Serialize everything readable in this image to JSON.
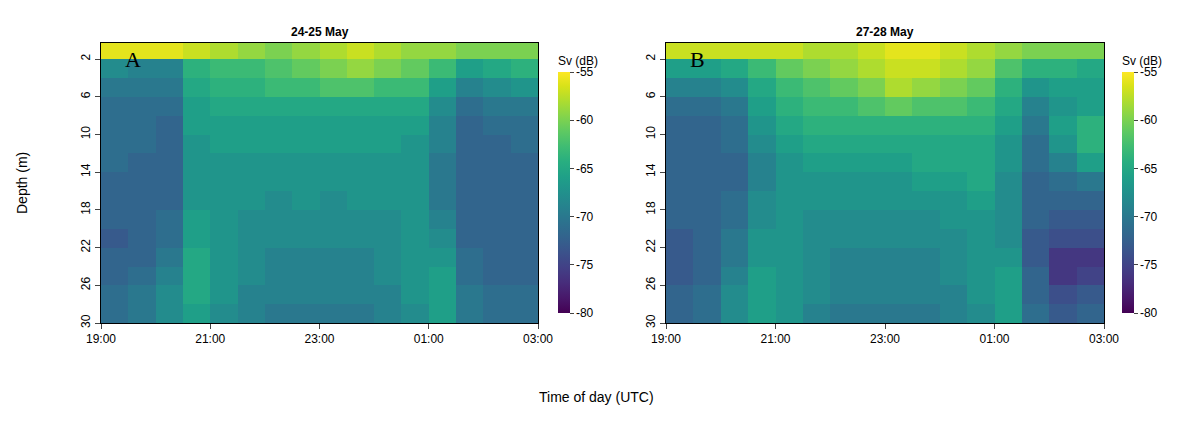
{
  "xlabel": "Time of day (UTC)",
  "ylabel": "Depth (m)",
  "chart_data": [
    {
      "type": "heatmap",
      "title": "24-25 May",
      "annotations": [
        "A"
      ],
      "color": "Viridis",
      "x": [
        19.25,
        19.75,
        20.25,
        20.75,
        21.25,
        21.75,
        22.25,
        22.75,
        23.25,
        23.75,
        24.25,
        24.75,
        25.25,
        25.75,
        26.25,
        26.75
      ],
      "y": [
        1,
        3,
        5,
        7,
        9,
        11,
        13,
        15,
        17,
        19,
        21,
        23,
        25,
        27,
        29
      ],
      "z": [
        [
          -56,
          -56,
          -56,
          -57,
          -58,
          -59,
          -60,
          -59,
          -58,
          -57,
          -58,
          -59,
          -59,
          -60,
          -60,
          -60
        ],
        [
          -68,
          -69,
          -69,
          -64,
          -63,
          -63,
          -62,
          -61,
          -60,
          -59,
          -60,
          -61,
          -63,
          -66,
          -65,
          -64
        ],
        [
          -70,
          -70,
          -70,
          -65,
          -64,
          -64,
          -63,
          -63,
          -62,
          -62,
          -63,
          -63,
          -66,
          -69,
          -68,
          -67
        ],
        [
          -71,
          -71,
          -71,
          -66,
          -65,
          -65,
          -65,
          -65,
          -65,
          -65,
          -65,
          -65,
          -68,
          -71,
          -70,
          -70
        ],
        [
          -71,
          -71,
          -72,
          -66,
          -66,
          -66,
          -66,
          -66,
          -66,
          -66,
          -66,
          -66,
          -69,
          -72,
          -71,
          -71
        ],
        [
          -71,
          -71,
          -72,
          -67,
          -66,
          -66,
          -66,
          -66,
          -66,
          -66,
          -66,
          -67,
          -69,
          -72,
          -72,
          -71
        ],
        [
          -71,
          -72,
          -72,
          -67,
          -67,
          -67,
          -67,
          -67,
          -67,
          -67,
          -67,
          -67,
          -70,
          -72,
          -72,
          -72
        ],
        [
          -72,
          -72,
          -72,
          -67,
          -67,
          -67,
          -67,
          -67,
          -67,
          -67,
          -67,
          -67,
          -70,
          -72,
          -72,
          -72
        ],
        [
          -72,
          -72,
          -72,
          -67,
          -67,
          -67,
          -68,
          -67,
          -68,
          -67,
          -67,
          -67,
          -70,
          -72,
          -72,
          -72
        ],
        [
          -72,
          -72,
          -71,
          -66,
          -67,
          -68,
          -68,
          -68,
          -68,
          -68,
          -68,
          -67,
          -69,
          -72,
          -72,
          -72
        ],
        [
          -73,
          -72,
          -71,
          -66,
          -67,
          -68,
          -68,
          -68,
          -68,
          -68,
          -68,
          -67,
          -68,
          -72,
          -72,
          -72
        ],
        [
          -72,
          -72,
          -70,
          -65,
          -67,
          -68,
          -69,
          -69,
          -69,
          -69,
          -68,
          -67,
          -67,
          -71,
          -72,
          -72
        ],
        [
          -72,
          -71,
          -69,
          -65,
          -67,
          -68,
          -69,
          -69,
          -69,
          -69,
          -68,
          -67,
          -66,
          -71,
          -72,
          -72
        ],
        [
          -71,
          -70,
          -68,
          -65,
          -67,
          -69,
          -69,
          -69,
          -69,
          -69,
          -69,
          -67,
          -66,
          -70,
          -71,
          -71
        ],
        [
          -71,
          -70,
          -68,
          -66,
          -68,
          -69,
          -70,
          -70,
          -70,
          -70,
          -69,
          -68,
          -66,
          -70,
          -71,
          -71
        ]
      ],
      "xlim": [
        19,
        27
      ],
      "xticks": [
        {
          "value": 19,
          "label": "19:00"
        },
        {
          "value": 21,
          "label": "21:00"
        },
        {
          "value": 23,
          "label": "23:00"
        },
        {
          "value": 25,
          "label": "01:00"
        },
        {
          "value": 27,
          "label": "03:00"
        }
      ],
      "ylim": [
        30,
        0.3
      ],
      "yticks": [
        2,
        6,
        10,
        14,
        18,
        22,
        26,
        30
      ],
      "colorbar": {
        "title": "Sv (dB)",
        "range": [
          -80,
          -55
        ],
        "ticks": [
          -55,
          -60,
          -65,
          -70,
          -75,
          -80
        ]
      }
    },
    {
      "type": "heatmap",
      "title": "27-28 May",
      "annotations": [
        "B"
      ],
      "color": "Viridis",
      "x": [
        19.25,
        19.75,
        20.25,
        20.75,
        21.25,
        21.75,
        22.25,
        22.75,
        23.25,
        23.75,
        24.25,
        24.75,
        25.25,
        25.75,
        26.25,
        26.75
      ],
      "y": [
        1,
        3,
        5,
        7,
        9,
        11,
        13,
        15,
        17,
        19,
        21,
        23,
        25,
        27,
        29
      ],
      "z": [
        [
          -57,
          -57,
          -57,
          -57,
          -57,
          -58,
          -58,
          -57,
          -56,
          -56,
          -57,
          -58,
          -59,
          -60,
          -60,
          -60
        ],
        [
          -66,
          -66,
          -65,
          -63,
          -61,
          -60,
          -59,
          -58,
          -57,
          -57,
          -58,
          -59,
          -62,
          -64,
          -64,
          -65
        ],
        [
          -69,
          -69,
          -68,
          -65,
          -63,
          -62,
          -61,
          -60,
          -58,
          -59,
          -60,
          -61,
          -64,
          -67,
          -66,
          -66
        ],
        [
          -71,
          -71,
          -70,
          -66,
          -64,
          -63,
          -63,
          -62,
          -61,
          -62,
          -62,
          -63,
          -65,
          -69,
          -67,
          -66
        ],
        [
          -72,
          -72,
          -71,
          -67,
          -65,
          -64,
          -64,
          -64,
          -64,
          -64,
          -64,
          -64,
          -66,
          -70,
          -66,
          -64
        ],
        [
          -72,
          -72,
          -71,
          -68,
          -66,
          -65,
          -65,
          -65,
          -65,
          -65,
          -65,
          -65,
          -67,
          -71,
          -67,
          -64
        ],
        [
          -72,
          -72,
          -72,
          -69,
          -67,
          -66,
          -66,
          -66,
          -66,
          -65,
          -65,
          -65,
          -67,
          -71,
          -69,
          -66
        ],
        [
          -72,
          -72,
          -72,
          -69,
          -67,
          -67,
          -67,
          -67,
          -67,
          -66,
          -66,
          -65,
          -68,
          -72,
          -71,
          -70
        ],
        [
          -72,
          -72,
          -71,
          -68,
          -67,
          -67,
          -67,
          -67,
          -67,
          -67,
          -67,
          -66,
          -68,
          -72,
          -72,
          -72
        ],
        [
          -72,
          -72,
          -71,
          -68,
          -67,
          -68,
          -68,
          -68,
          -68,
          -68,
          -67,
          -67,
          -68,
          -72,
          -73,
          -73
        ],
        [
          -73,
          -72,
          -70,
          -67,
          -67,
          -68,
          -68,
          -68,
          -68,
          -68,
          -68,
          -67,
          -68,
          -73,
          -74,
          -74
        ],
        [
          -73,
          -72,
          -70,
          -67,
          -67,
          -68,
          -69,
          -69,
          -69,
          -69,
          -68,
          -67,
          -67,
          -73,
          -76,
          -76
        ],
        [
          -73,
          -72,
          -69,
          -66,
          -67,
          -68,
          -69,
          -69,
          -69,
          -69,
          -68,
          -67,
          -66,
          -72,
          -76,
          -75
        ],
        [
          -72,
          -71,
          -68,
          -66,
          -67,
          -68,
          -69,
          -69,
          -69,
          -69,
          -69,
          -67,
          -66,
          -72,
          -74,
          -73
        ],
        [
          -72,
          -71,
          -68,
          -66,
          -67,
          -69,
          -70,
          -70,
          -70,
          -70,
          -69,
          -68,
          -66,
          -71,
          -73,
          -72
        ]
      ],
      "xlim": [
        19,
        27
      ],
      "xticks": [
        {
          "value": 19,
          "label": "19:00"
        },
        {
          "value": 21,
          "label": "21:00"
        },
        {
          "value": 23,
          "label": "23:00"
        },
        {
          "value": 25,
          "label": "01:00"
        },
        {
          "value": 27,
          "label": "03:00"
        }
      ],
      "ylim": [
        30,
        0.3
      ],
      "yticks": [
        2,
        6,
        10,
        14,
        18,
        22,
        26,
        30
      ],
      "colorbar": {
        "title": "Sv (dB)",
        "range": [
          -80,
          -55
        ],
        "ticks": [
          -55,
          -60,
          -65,
          -70,
          -75,
          -80
        ]
      }
    }
  ]
}
